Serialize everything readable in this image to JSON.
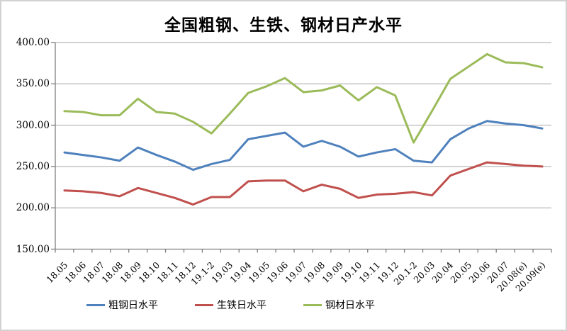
{
  "title": "全国粗钢、生铁、钢材日产水平",
  "chart_data": {
    "type": "line",
    "title": "全国粗钢、生铁、钢材日产水平",
    "categories": [
      "18.05",
      "18.06",
      "18.07",
      "18.08",
      "18.09",
      "18.10",
      "18.11",
      "18.12",
      "19.1-2",
      "19.03",
      "19.04",
      "19.05",
      "19.06",
      "19.07",
      "19.08",
      "19.09",
      "19.10",
      "19.11",
      "19.12",
      "20.1-2",
      "20.03",
      "20.04",
      "20.05",
      "20.06",
      "20.07",
      "20.08(e)",
      "20.09(e)"
    ],
    "series": [
      {
        "name": "粗钢日水平",
        "color": "#4F81BD",
        "values": [
          267,
          264,
          261,
          257,
          273,
          264,
          256,
          246,
          253,
          258,
          283,
          287,
          291,
          274,
          281,
          274,
          262,
          267,
          271,
          257,
          255,
          283,
          296,
          305,
          302,
          300,
          296
        ]
      },
      {
        "name": "生铁日水平",
        "color": "#C0504D",
        "values": [
          221,
          220,
          218,
          214,
          224,
          218,
          212,
          204,
          213,
          213,
          232,
          233,
          233,
          220,
          228,
          223,
          212,
          216,
          217,
          219,
          215,
          239,
          247,
          255,
          253,
          251,
          250
        ]
      },
      {
        "name": "钢材日水平",
        "color": "#9BBB59",
        "values": [
          317,
          316,
          312,
          312,
          332,
          316,
          314,
          304,
          290,
          314,
          339,
          347,
          357,
          340,
          342,
          348,
          330,
          346,
          336,
          279,
          317,
          356,
          371,
          386,
          376,
          375,
          370
        ]
      }
    ],
    "ylim": [
      150,
      400
    ],
    "y_tick_step": 50,
    "y_tick_labels": [
      "400.00",
      "350.00",
      "300.00",
      "250.00",
      "200.00",
      "150.00"
    ],
    "grid": true,
    "legend_position": "bottom",
    "xlabel": "",
    "ylabel": "",
    "colors": {
      "gridline": "#a6a6a6",
      "axis": "#7f7f7f",
      "text": "#000000",
      "background": "#ffffff"
    }
  }
}
